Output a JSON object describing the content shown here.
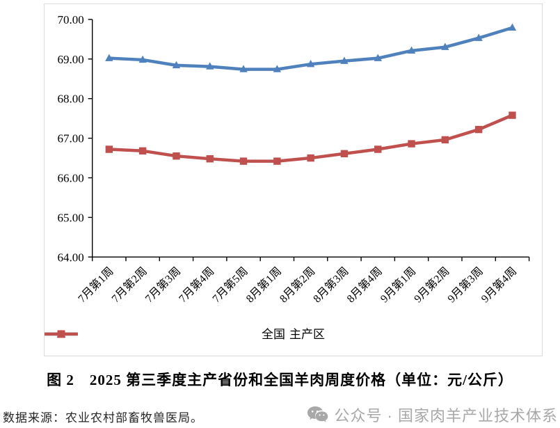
{
  "figure": {
    "caption": "图 2　2025 第三季度主产省份和全国羊肉周度价格（单位：元/公斤）"
  },
  "chart_data": {
    "type": "line",
    "categories": [
      "7月第1周",
      "7月第2周",
      "7月第3周",
      "7月第4周",
      "7月第5周",
      "8月第1周",
      "8月第2周",
      "8月第3周",
      "8月第4周",
      "9月第1周",
      "9月第2周",
      "9月第3周",
      "9月第4周"
    ],
    "series": [
      {
        "name": "全国",
        "marker": "triangle",
        "color": "#4f81bd",
        "values": [
          69.02,
          68.98,
          68.84,
          68.81,
          68.74,
          68.74,
          68.87,
          68.95,
          69.02,
          69.21,
          69.3,
          69.53,
          69.79
        ]
      },
      {
        "name": "主产区",
        "marker": "square",
        "color": "#c0504d",
        "values": [
          66.72,
          66.68,
          66.55,
          66.48,
          66.42,
          66.42,
          66.5,
          66.61,
          66.72,
          66.86,
          66.96,
          67.22,
          67.58
        ]
      }
    ],
    "ylim": [
      64,
      70
    ],
    "ytick_step": 1,
    "ytick_labels": [
      "64.00",
      "65.00",
      "66.00",
      "67.00",
      "68.00",
      "69.00",
      "70.00"
    ],
    "xlabel": "",
    "ylabel": "",
    "grid": false,
    "legend_position": "bottom",
    "axis_color": "#000000"
  },
  "footer": {
    "source": "数据来源：农业农村部畜牧兽医局。",
    "watermark": "公众号 · 国家肉羊产业技术体系"
  }
}
